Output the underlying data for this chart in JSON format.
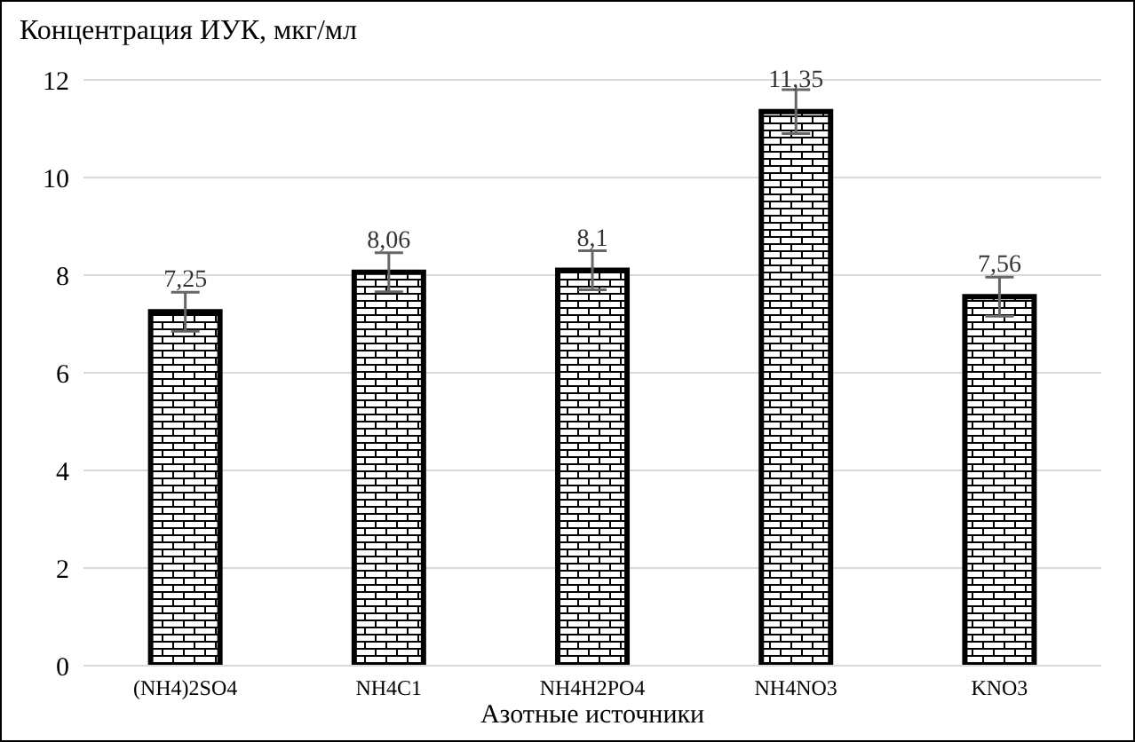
{
  "chart_data": {
    "type": "bar",
    "ylabel": "Концентрация ИУК, мкг/мл",
    "xlabel": "Азотные источники",
    "categories": [
      "(NH4)2SO4",
      "NH4C1",
      "NH4H2PO4",
      "NH4NO3",
      "KNO3"
    ],
    "values": [
      7.25,
      8.06,
      8.1,
      11.35,
      7.56
    ],
    "errors": [
      0.4,
      0.4,
      0.4,
      0.45,
      0.4
    ],
    "color": "#000000",
    "value_labels": [
      "7,25",
      "8,06",
      "8,1",
      "11,35",
      "7,56"
    ],
    "ylim": [
      0,
      12
    ],
    "yticks": [
      0,
      2,
      4,
      6,
      8,
      10,
      12
    ],
    "grid": "y"
  }
}
